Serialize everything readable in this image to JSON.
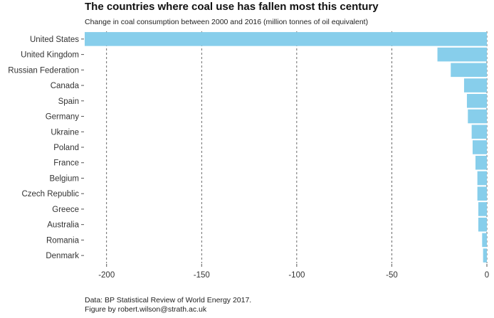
{
  "chart_data": {
    "type": "bar",
    "orientation": "horizontal",
    "title": "The countries where coal use has fallen most this century",
    "subtitle": "Change in coal consumption between 2000 and 2016 (million tonnes of oil equivalent)",
    "xlabel": "",
    "ylabel": "",
    "categories": [
      "United States",
      "United Kingdom",
      "Russian Federation",
      "Canada",
      "Spain",
      "Germany",
      "Ukraine",
      "Poland",
      "France",
      "Belgium",
      "Czech Republic",
      "Greece",
      "Australia",
      "Romania",
      "Denmark"
    ],
    "values": [
      -211.5,
      -26,
      -19,
      -12,
      -10.5,
      -10,
      -8,
      -7.5,
      -6,
      -5,
      -5,
      -4.5,
      -4.5,
      -2.5,
      -2
    ],
    "xlim": [
      -211.5,
      0
    ],
    "xticks": [
      -200,
      -150,
      -100,
      -50,
      0
    ],
    "xtick_labels": [
      "-200",
      "-150",
      "-100",
      "-50",
      "0"
    ],
    "grid": "vertical dashed",
    "legend": "none",
    "bar_color": "#87ceeb",
    "caption": [
      "Data: BP Statistical Review of World Energy 2017.",
      "Figure by robert.wilson@strath.ac.uk"
    ]
  }
}
